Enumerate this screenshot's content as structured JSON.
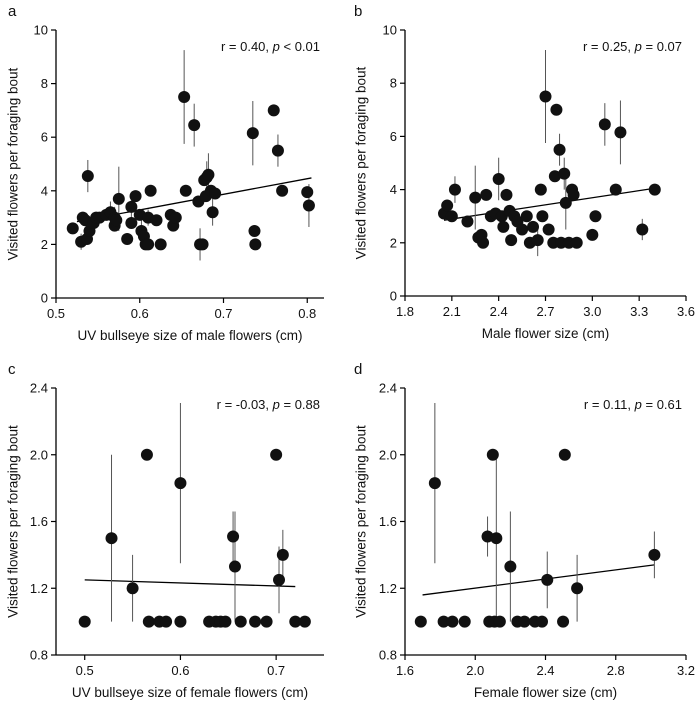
{
  "chart_data": [
    {
      "type": "scatter",
      "panel_label": "a",
      "xlabel": "UV bullseye size of male flowers (cm)",
      "ylabel": "Visited flowers per foraging bout",
      "xlim": [
        0.5,
        0.82
      ],
      "ylim": [
        0,
        10
      ],
      "xticks": [
        0.5,
        0.6,
        0.7,
        0.8
      ],
      "xtick_labels": [
        "0.5",
        "0.6",
        "0.7",
        "0.8"
      ],
      "yticks": [
        0,
        2,
        4,
        6,
        8,
        10
      ],
      "ytick_labels": [
        "0",
        "2",
        "4",
        "6",
        "8",
        "10"
      ],
      "stat_r": "r = 0.40, ",
      "stat_p_letter": "p",
      "stat_p_rest": " < 0.01",
      "trend": [
        [
          0.525,
          2.85
        ],
        [
          0.805,
          4.48
        ]
      ],
      "points": [
        [
          0.52,
          2.6,
          0
        ],
        [
          0.53,
          2.1,
          0.3
        ],
        [
          0.532,
          3.0,
          0
        ],
        [
          0.535,
          2.9,
          0
        ],
        [
          0.537,
          2.2,
          0
        ],
        [
          0.54,
          2.5,
          0
        ],
        [
          0.538,
          4.55,
          0.6
        ],
        [
          0.545,
          2.8,
          0
        ],
        [
          0.548,
          3.0,
          0
        ],
        [
          0.552,
          3.0,
          0
        ],
        [
          0.56,
          3.1,
          0
        ],
        [
          0.565,
          3.2,
          0.4
        ],
        [
          0.57,
          3.0,
          0.4
        ],
        [
          0.57,
          2.7,
          0
        ],
        [
          0.572,
          2.9,
          0
        ],
        [
          0.575,
          3.7,
          1.2
        ],
        [
          0.585,
          2.2,
          0
        ],
        [
          0.59,
          2.8,
          0
        ],
        [
          0.59,
          3.4,
          0.5
        ],
        [
          0.595,
          3.8,
          0
        ],
        [
          0.6,
          3.1,
          0
        ],
        [
          0.602,
          2.5,
          0.6
        ],
        [
          0.605,
          2.3,
          0
        ],
        [
          0.607,
          2.0,
          0
        ],
        [
          0.61,
          2.0,
          0
        ],
        [
          0.61,
          3.0,
          0.3
        ],
        [
          0.613,
          4.0,
          0
        ],
        [
          0.62,
          2.9,
          0
        ],
        [
          0.625,
          2.0,
          0
        ],
        [
          0.637,
          3.1,
          0
        ],
        [
          0.64,
          2.7,
          0
        ],
        [
          0.643,
          3.0,
          0
        ],
        [
          0.653,
          7.5,
          1.75
        ],
        [
          0.655,
          4.0,
          0
        ],
        [
          0.665,
          6.45,
          0.8
        ],
        [
          0.67,
          3.6,
          0
        ],
        [
          0.672,
          2.0,
          0.6
        ],
        [
          0.675,
          2.0,
          0
        ],
        [
          0.677,
          4.4,
          0
        ],
        [
          0.679,
          3.8,
          0
        ],
        [
          0.68,
          4.5,
          0.6
        ],
        [
          0.682,
          4.6,
          0.8
        ],
        [
          0.685,
          4.0,
          0
        ],
        [
          0.687,
          3.2,
          0.5
        ],
        [
          0.69,
          3.9,
          0
        ],
        [
          0.735,
          6.15,
          1.2
        ],
        [
          0.737,
          2.5,
          0
        ],
        [
          0.738,
          2.0,
          0
        ],
        [
          0.76,
          7.0,
          0
        ],
        [
          0.765,
          5.5,
          0.6
        ],
        [
          0.77,
          4.0,
          0
        ],
        [
          0.8,
          3.95,
          0
        ],
        [
          0.802,
          3.45,
          0.8
        ]
      ]
    },
    {
      "type": "scatter",
      "panel_label": "b",
      "xlabel": "Male flower size (cm)",
      "ylabel": "Visited flowers per foraging bout",
      "xlim": [
        1.8,
        3.6
      ],
      "ylim": [
        0,
        10
      ],
      "xticks": [
        1.8,
        2.1,
        2.4,
        2.7,
        3.0,
        3.3,
        3.6
      ],
      "xtick_labels": [
        "1.8",
        "2.1",
        "2.4",
        "2.7",
        "3.0",
        "3.3",
        "3.6"
      ],
      "yticks": [
        0,
        2,
        4,
        6,
        8,
        10
      ],
      "ytick_labels": [
        "0",
        "2",
        "4",
        "6",
        "8",
        "10"
      ],
      "stat_r": "r = 0.25, ",
      "stat_p_letter": "p",
      "stat_p_rest": " = 0.07",
      "trend": [
        [
          2.05,
          2.85
        ],
        [
          3.4,
          4.05
        ]
      ],
      "points": [
        [
          2.05,
          3.1,
          0
        ],
        [
          2.07,
          3.4,
          0
        ],
        [
          2.1,
          3.0,
          0
        ],
        [
          2.12,
          4.0,
          0.5
        ],
        [
          2.2,
          2.8,
          0
        ],
        [
          2.25,
          3.7,
          1.2
        ],
        [
          2.27,
          2.2,
          0
        ],
        [
          2.29,
          2.3,
          0
        ],
        [
          2.3,
          2.0,
          0
        ],
        [
          2.32,
          3.8,
          0
        ],
        [
          2.35,
          3.0,
          0
        ],
        [
          2.38,
          3.1,
          0
        ],
        [
          2.4,
          4.4,
          0.8
        ],
        [
          2.42,
          3.0,
          0
        ],
        [
          2.43,
          2.6,
          0
        ],
        [
          2.45,
          3.8,
          0
        ],
        [
          2.47,
          3.2,
          0
        ],
        [
          2.48,
          2.1,
          0
        ],
        [
          2.5,
          3.0,
          0
        ],
        [
          2.52,
          2.8,
          0
        ],
        [
          2.55,
          2.5,
          0
        ],
        [
          2.58,
          3.0,
          0
        ],
        [
          2.6,
          2.0,
          0
        ],
        [
          2.62,
          2.6,
          0
        ],
        [
          2.65,
          2.1,
          0.6
        ],
        [
          2.67,
          4.0,
          0
        ],
        [
          2.68,
          3.0,
          0
        ],
        [
          2.7,
          7.5,
          1.75
        ],
        [
          2.72,
          2.5,
          0
        ],
        [
          2.75,
          2.0,
          0
        ],
        [
          2.76,
          4.5,
          0
        ],
        [
          2.77,
          7.0,
          0
        ],
        [
          2.79,
          5.5,
          0.6
        ],
        [
          2.8,
          2.0,
          0
        ],
        [
          2.82,
          4.6,
          0.6
        ],
        [
          2.83,
          3.5,
          1.0
        ],
        [
          2.85,
          2.0,
          0
        ],
        [
          2.87,
          4.0,
          0
        ],
        [
          2.88,
          3.8,
          0
        ],
        [
          2.9,
          2.0,
          0
        ],
        [
          3.0,
          2.3,
          0
        ],
        [
          3.02,
          3.0,
          0
        ],
        [
          3.08,
          6.45,
          0.8
        ],
        [
          3.15,
          4.0,
          0
        ],
        [
          3.18,
          6.15,
          1.2
        ],
        [
          3.32,
          2.5,
          0.4
        ],
        [
          3.4,
          4.0,
          0
        ]
      ]
    },
    {
      "type": "scatter",
      "panel_label": "c",
      "xlabel": "UV bullseye size of female flowers (cm)",
      "ylabel": "Visited flowers per foraging bout",
      "xlim": [
        0.47,
        0.75
      ],
      "ylim": [
        0.8,
        2.4
      ],
      "xticks": [
        0.5,
        0.6,
        0.7
      ],
      "xtick_labels": [
        "0.5",
        "0.6",
        "0.7"
      ],
      "yticks": [
        0.8,
        1.2,
        1.6,
        2.0,
        2.4
      ],
      "ytick_labels": [
        "0.8",
        "1.2",
        "1.6",
        "2.0",
        "2.4"
      ],
      "stat_r": "r = -0.03, ",
      "stat_p_letter": "p",
      "stat_p_rest": " = 0.88",
      "trend": [
        [
          0.5,
          1.25
        ],
        [
          0.72,
          1.21
        ]
      ],
      "points": [
        [
          0.5,
          1.0,
          0
        ],
        [
          0.528,
          1.5,
          0.5
        ],
        [
          0.55,
          1.2,
          0.2
        ],
        [
          0.565,
          2.0,
          0
        ],
        [
          0.567,
          1.0,
          0
        ],
        [
          0.578,
          1.0,
          0
        ],
        [
          0.585,
          1.0,
          0
        ],
        [
          0.6,
          1.83,
          0.48
        ],
        [
          0.6,
          1.0,
          0
        ],
        [
          0.63,
          1.0,
          0
        ],
        [
          0.637,
          1.0,
          0
        ],
        [
          0.642,
          1.0,
          0
        ],
        [
          0.647,
          1.0,
          0
        ],
        [
          0.655,
          1.51,
          0.15
        ],
        [
          0.657,
          1.33,
          0.33
        ],
        [
          0.663,
          1.0,
          0
        ],
        [
          0.678,
          1.0,
          0
        ],
        [
          0.69,
          1.0,
          0
        ],
        [
          0.7,
          2.0,
          0
        ],
        [
          0.703,
          1.25,
          0.2
        ],
        [
          0.707,
          1.4,
          0.15
        ],
        [
          0.72,
          1.0,
          0
        ],
        [
          0.73,
          1.0,
          0
        ]
      ]
    },
    {
      "type": "scatter",
      "panel_label": "d",
      "xlabel": "Female flower size (cm)",
      "ylabel": "Visited flowers per foraging bout",
      "xlim": [
        1.6,
        3.2
      ],
      "ylim": [
        0.8,
        2.4
      ],
      "xticks": [
        1.6,
        2.0,
        2.4,
        2.8,
        3.2
      ],
      "xtick_labels": [
        "1.6",
        "2.0",
        "2.4",
        "2.8",
        "3.2"
      ],
      "yticks": [
        0.8,
        1.2,
        1.6,
        2.0,
        2.4
      ],
      "ytick_labels": [
        "0.8",
        "1.2",
        "1.6",
        "2.0",
        "2.4"
      ],
      "stat_r": "r = 0.11, ",
      "stat_p_letter": "p",
      "stat_p_rest": " = 0.61",
      "trend": [
        [
          1.7,
          1.16
        ],
        [
          3.02,
          1.34
        ]
      ],
      "points": [
        [
          1.69,
          1.0,
          0
        ],
        [
          1.77,
          1.83,
          0.48
        ],
        [
          1.82,
          1.0,
          0
        ],
        [
          1.87,
          1.0,
          0
        ],
        [
          1.94,
          1.0,
          0
        ],
        [
          2.07,
          1.51,
          0.12
        ],
        [
          2.08,
          1.0,
          0
        ],
        [
          2.1,
          2.0,
          0
        ],
        [
          2.11,
          1.0,
          0
        ],
        [
          2.12,
          1.5,
          0.5
        ],
        [
          2.14,
          1.0,
          0
        ],
        [
          2.2,
          1.33,
          0.33
        ],
        [
          2.24,
          1.0,
          0
        ],
        [
          2.28,
          1.0,
          0
        ],
        [
          2.34,
          1.0,
          0
        ],
        [
          2.38,
          1.0,
          0
        ],
        [
          2.41,
          1.25,
          0.17
        ],
        [
          2.5,
          1.0,
          0
        ],
        [
          2.51,
          2.0,
          0
        ],
        [
          2.58,
          1.2,
          0.2
        ],
        [
          3.02,
          1.4,
          0.14
        ]
      ]
    }
  ]
}
